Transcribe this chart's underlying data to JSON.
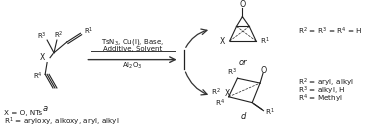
{
  "background": "#ffffff",
  "figsize": [
    3.78,
    1.3
  ],
  "dpi": 100,
  "text_color": "#1a1a1a",
  "reagent_line1": "TsN$_3$, Cu(I), Base,",
  "reagent_line2": "Additive, Solvent",
  "reagent_line3": "Al$_2$O$_3$",
  "label_a": "a",
  "label_d": "d",
  "label_X": "X = O, NTs",
  "label_R1": "R$^1$ = aryloxy, alkoxy, aryl, alkyl",
  "label_or": "or",
  "right_top": "R$^2$ = R$^3$ = R$^4$ = H",
  "right_bot1": "R$^2$ = aryl, alkyl",
  "right_bot2": "R$^3$ = alkyl, H",
  "right_bot3": "R$^4$ = Methyl",
  "fontsize_main": 6.5,
  "fontsize_small": 6.0
}
